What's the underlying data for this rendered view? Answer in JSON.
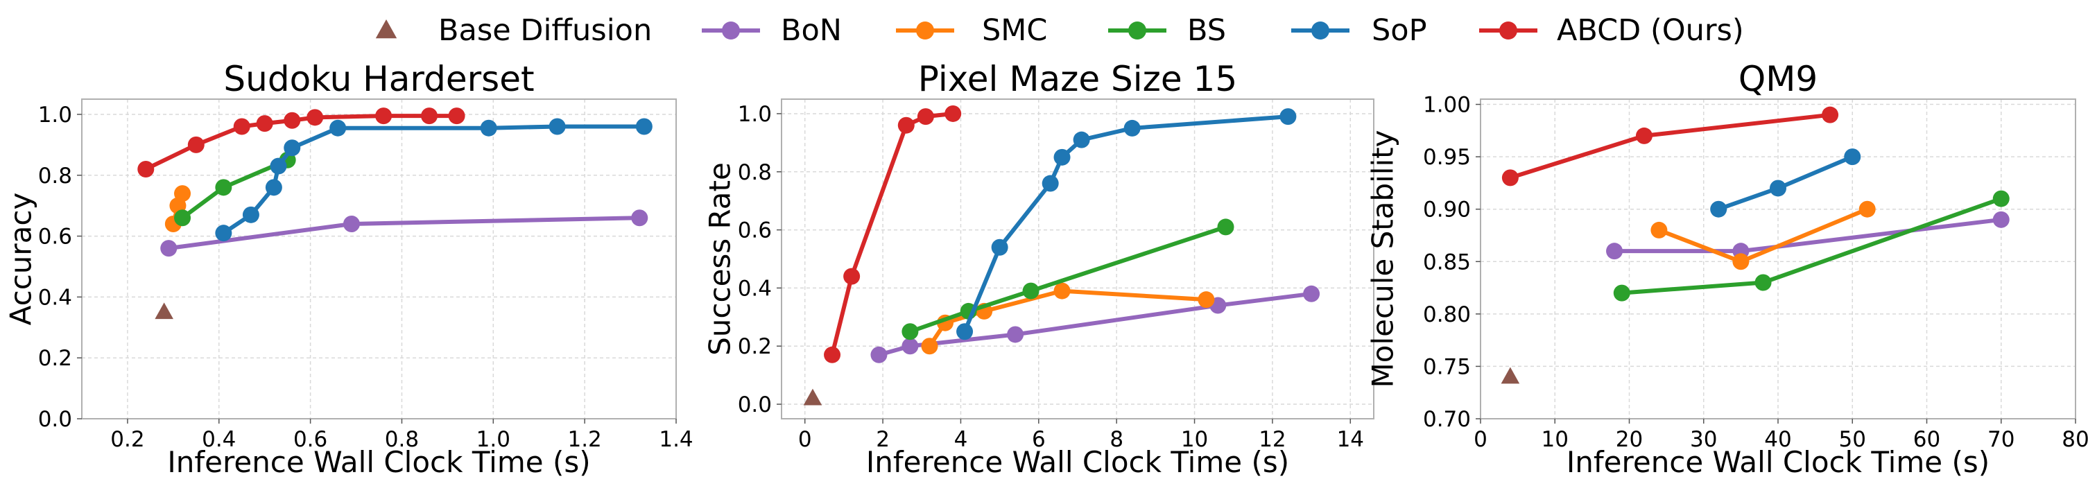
{
  "legend": {
    "entries": [
      {
        "key": "base",
        "label": "Base Diffusion",
        "color": "#8c564b",
        "marker": "triangle"
      },
      {
        "key": "bon",
        "label": "BoN",
        "color": "#9467bd",
        "marker": "circle"
      },
      {
        "key": "smc",
        "label": "SMC",
        "color": "#ff7f0e",
        "marker": "circle"
      },
      {
        "key": "bs",
        "label": "BS",
        "color": "#2ca02c",
        "marker": "circle"
      },
      {
        "key": "sop",
        "label": "SoP",
        "color": "#1f77b4",
        "marker": "circle"
      },
      {
        "key": "abcd",
        "label": "ABCD (Ours)",
        "color": "#d62728",
        "marker": "circle"
      }
    ]
  },
  "chart_data": [
    {
      "type": "line",
      "title": "Sudoku Harderset",
      "xlabel": "Inference Wall Clock Time (s)",
      "ylabel": "Accuracy",
      "xlim": [
        0.1,
        1.4
      ],
      "ylim": [
        0.0,
        1.05
      ],
      "xticks": [
        0.2,
        0.4,
        0.6,
        0.8,
        1.0,
        1.2,
        1.4
      ],
      "xtick_labels": [
        "0.2",
        "0.4",
        "0.6",
        "0.8",
        "1.0",
        "1.2",
        "1.4"
      ],
      "yticks": [
        0.0,
        0.2,
        0.4,
        0.6,
        0.8,
        1.0
      ],
      "ytick_labels": [
        "0.0",
        "0.2",
        "0.4",
        "0.6",
        "0.8",
        "1.0"
      ],
      "grid": true,
      "series": [
        {
          "name": "Base Diffusion",
          "key": "base",
          "x": [
            0.28
          ],
          "y": [
            0.35
          ]
        },
        {
          "name": "BoN",
          "key": "bon",
          "x": [
            0.29,
            0.69,
            1.32
          ],
          "y": [
            0.56,
            0.64,
            0.66
          ]
        },
        {
          "name": "SMC",
          "key": "smc",
          "x": [
            0.3,
            0.31,
            0.32
          ],
          "y": [
            0.64,
            0.7,
            0.74
          ]
        },
        {
          "name": "BS",
          "key": "bs",
          "x": [
            0.32,
            0.41,
            0.55
          ],
          "y": [
            0.66,
            0.76,
            0.85
          ]
        },
        {
          "name": "SoP",
          "key": "sop",
          "x": [
            0.41,
            0.47,
            0.52,
            0.53,
            0.56,
            0.66,
            0.99,
            1.14,
            1.33
          ],
          "y": [
            0.61,
            0.67,
            0.76,
            0.83,
            0.89,
            0.955,
            0.955,
            0.96,
            0.96
          ]
        },
        {
          "name": "ABCD (Ours)",
          "key": "abcd",
          "x": [
            0.24,
            0.35,
            0.45,
            0.5,
            0.56,
            0.61,
            0.76,
            0.86,
            0.92
          ],
          "y": [
            0.82,
            0.9,
            0.96,
            0.97,
            0.98,
            0.99,
            0.995,
            0.995,
            0.995
          ]
        }
      ]
    },
    {
      "type": "line",
      "title": "Pixel Maze Size 15",
      "xlabel": "Inference Wall Clock Time (s)",
      "ylabel": "Success Rate",
      "xlim": [
        -0.6,
        14.6
      ],
      "ylim": [
        -0.05,
        1.05
      ],
      "xticks": [
        0,
        2,
        4,
        6,
        8,
        10,
        12,
        14
      ],
      "xtick_labels": [
        "0",
        "2",
        "4",
        "6",
        "8",
        "10",
        "12",
        "14"
      ],
      "yticks": [
        0.0,
        0.2,
        0.4,
        0.6,
        0.8,
        1.0
      ],
      "ytick_labels": [
        "0.0",
        "0.2",
        "0.4",
        "0.6",
        "0.8",
        "1.0"
      ],
      "grid": true,
      "series": [
        {
          "name": "Base Diffusion",
          "key": "base",
          "x": [
            0.2
          ],
          "y": [
            0.02
          ]
        },
        {
          "name": "BoN",
          "key": "bon",
          "x": [
            1.9,
            2.7,
            5.4,
            10.6,
            13.0
          ],
          "y": [
            0.17,
            0.2,
            0.24,
            0.34,
            0.38
          ]
        },
        {
          "name": "SMC",
          "key": "smc",
          "x": [
            3.2,
            3.6,
            4.6,
            6.6,
            10.3
          ],
          "y": [
            0.2,
            0.28,
            0.32,
            0.39,
            0.36
          ]
        },
        {
          "name": "BS",
          "key": "bs",
          "x": [
            2.7,
            4.2,
            5.8,
            10.8
          ],
          "y": [
            0.25,
            0.32,
            0.39,
            0.61
          ]
        },
        {
          "name": "SoP",
          "key": "sop",
          "x": [
            4.1,
            5.0,
            6.3,
            6.6,
            7.1,
            8.4,
            12.4
          ],
          "y": [
            0.25,
            0.54,
            0.76,
            0.85,
            0.91,
            0.95,
            0.99
          ]
        },
        {
          "name": "ABCD (Ours)",
          "key": "abcd",
          "x": [
            0.7,
            1.2,
            2.6,
            3.1,
            3.8
          ],
          "y": [
            0.17,
            0.44,
            0.96,
            0.99,
            1.0
          ]
        }
      ]
    },
    {
      "type": "line",
      "title": "QM9",
      "xlabel": "Inference Wall Clock Time (s)",
      "ylabel": "Molecule Stability",
      "xlim": [
        0,
        80
      ],
      "ylim": [
        0.7,
        1.005
      ],
      "xticks": [
        0,
        10,
        20,
        30,
        40,
        50,
        60,
        70,
        80
      ],
      "xtick_labels": [
        "0",
        "10",
        "20",
        "30",
        "40",
        "50",
        "60",
        "70",
        "80"
      ],
      "yticks": [
        0.7,
        0.75,
        0.8,
        0.85,
        0.9,
        0.95,
        1.0
      ],
      "ytick_labels": [
        "0.70",
        "0.75",
        "0.80",
        "0.85",
        "0.90",
        "0.95",
        "1.00"
      ],
      "grid": true,
      "series": [
        {
          "name": "Base Diffusion",
          "key": "base",
          "x": [
            4
          ],
          "y": [
            0.74
          ]
        },
        {
          "name": "BoN",
          "key": "bon",
          "x": [
            18,
            35,
            70
          ],
          "y": [
            0.86,
            0.86,
            0.89
          ]
        },
        {
          "name": "SMC",
          "key": "smc",
          "x": [
            24,
            35,
            52
          ],
          "y": [
            0.88,
            0.85,
            0.9
          ]
        },
        {
          "name": "BS",
          "key": "bs",
          "x": [
            19,
            38,
            70
          ],
          "y": [
            0.82,
            0.83,
            0.91
          ]
        },
        {
          "name": "SoP",
          "key": "sop",
          "x": [
            32,
            40,
            50
          ],
          "y": [
            0.9,
            0.92,
            0.95
          ]
        },
        {
          "name": "ABCD (Ours)",
          "key": "abcd",
          "x": [
            4,
            22,
            47
          ],
          "y": [
            0.93,
            0.97,
            0.99
          ]
        }
      ]
    }
  ]
}
